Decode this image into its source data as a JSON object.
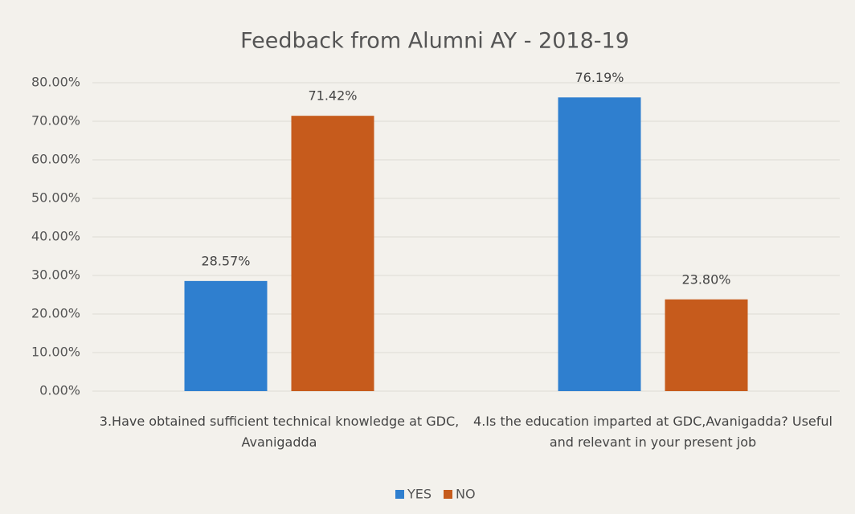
{
  "chart_data": {
    "type": "bar",
    "title": "Feedback from Alumni AY - 2018-19",
    "categories": [
      "3.Have obtained sufficient technical knowledge at GDC, Avanigadda",
      "4.Is the education imparted at GDC,Avanigadda? Useful and relevant in your present job"
    ],
    "series": [
      {
        "name": "YES",
        "color": "#2f7fcf",
        "values": [
          28.57,
          76.19
        ],
        "value_labels": [
          "28.57%",
          "76.19%"
        ]
      },
      {
        "name": "NO",
        "color": "#c65b1c",
        "values": [
          71.42,
          23.8
        ],
        "value_labels": [
          "71.42%",
          "23.80%"
        ]
      }
    ],
    "ylim": [
      0,
      80
    ],
    "yticks": [
      {
        "value": 0,
        "label": "0.00%"
      },
      {
        "value": 10,
        "label": "10.00%"
      },
      {
        "value": 20,
        "label": "20.00%"
      },
      {
        "value": 30,
        "label": "30.00%"
      },
      {
        "value": 40,
        "label": "40.00%"
      },
      {
        "value": 50,
        "label": "50.00%"
      },
      {
        "value": 60,
        "label": "60.00%"
      },
      {
        "value": 70,
        "label": "70.00%"
      },
      {
        "value": 80,
        "label": "80.00%"
      }
    ],
    "grid": true,
    "legend": "bottom"
  }
}
